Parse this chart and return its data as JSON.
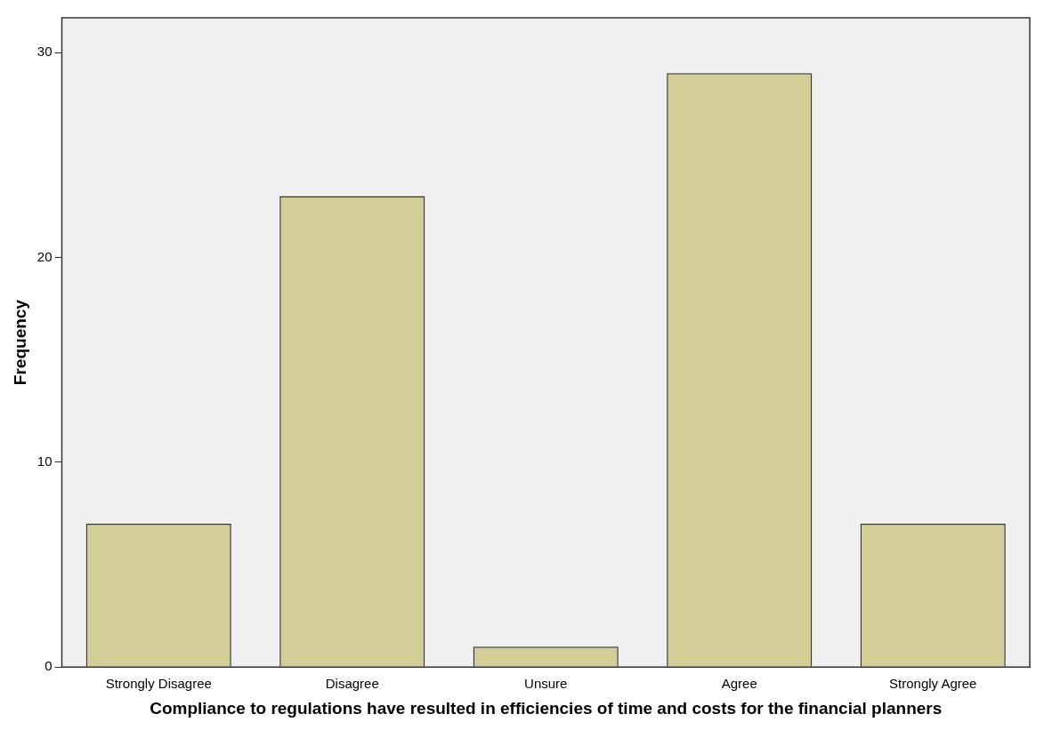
{
  "chart_data": {
    "type": "bar",
    "xlabel": "Compliance to regulations have resulted in efficiencies of time and costs for the financial planners",
    "ylabel": "Frequency",
    "categories": [
      "Strongly Disagree",
      "Disagree",
      "Unsure",
      "Agree",
      "Strongly Agree"
    ],
    "values": [
      7,
      23,
      1,
      29,
      7
    ],
    "color": "#d3ce97",
    "ylim": [
      0,
      31.7
    ],
    "yticks": [
      0,
      10,
      20,
      30
    ],
    "grid": false,
    "legend": false
  }
}
